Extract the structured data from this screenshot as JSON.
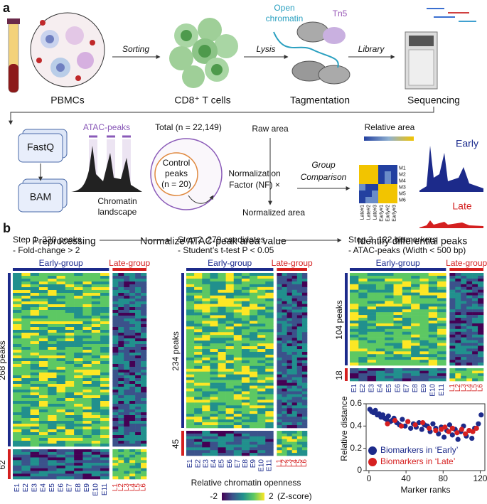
{
  "panel_a": {
    "label": "a",
    "top_steps": [
      "PBMCs",
      "CD8⁺ T cells",
      "Tagmentation",
      "Sequencing"
    ],
    "top_arrows": [
      "Sorting",
      "Lysis",
      "Library"
    ],
    "open_chromatin": [
      "Open",
      "chromatin"
    ],
    "tn5": "Tn5",
    "fastq": "FastQ",
    "bam": "BAM",
    "preprocessing": "Preprocessing",
    "atac_peaks": "ATAC-peaks",
    "chromatin_landscape": [
      "Chromatin",
      "landscape"
    ],
    "total": "Total (n = 22,149)",
    "control_peaks": [
      "Control",
      "peaks",
      "(n = 20)"
    ],
    "raw_area": "Raw area",
    "nf": [
      "Normalization",
      "Factor (NF) ×"
    ],
    "normalized_area": "Normalized area",
    "normalize_title": "Normalize ATAC-peak area value",
    "group_comparison": [
      "Group",
      "Comparison"
    ],
    "relative_area": "Relative area",
    "heat_rows": [
      "M1",
      "M2",
      "M4",
      "M3",
      "M5",
      "M6"
    ],
    "heat_cols": [
      "Late#1",
      "Late#2",
      "Late#3",
      "Early#1",
      "Early#2",
      "Early#3"
    ],
    "early": "Early",
    "late": "Late",
    "identify_title": "Identify differential peaks"
  },
  "panel_b": {
    "label": "b",
    "steps": [
      [
        "Step 1. 330 peaks",
        "- Fold-change > 2"
      ],
      [
        "Step 2. 279 candidates",
        "- Student’s t-test P < 0.05"
      ],
      [
        "Step 3. 122 biomarkers",
        "- ATAC-peaks (Width < 500 bp)"
      ]
    ],
    "early_group": "Early-group",
    "late_group": "Late-group",
    "row_groups": [
      [
        "268 peaks",
        "62"
      ],
      [
        "234 peaks",
        "45"
      ],
      [
        "104 peaks",
        "18"
      ]
    ],
    "early_samples": [
      "E1",
      "E2",
      "E3",
      "E4",
      "E5",
      "E6",
      "E7",
      "E8",
      "E9",
      "E10",
      "E11"
    ],
    "late_samples": [
      "L1",
      "L2",
      "L3",
      "L4",
      "L5",
      "L6"
    ],
    "colorbar": {
      "title": "Relative chromatin openness",
      "min_label": "-2",
      "max_label": "2",
      "unit": "(Z-score)"
    }
  },
  "chart_data": {
    "type": "scatter",
    "ylabel": "Relative distance",
    "xlabel": "Marker ranks",
    "xlim": [
      -3,
      125
    ],
    "ylim": [
      0,
      0.6
    ],
    "xticks": [
      0,
      40,
      80,
      120
    ],
    "yticks": [
      0,
      0.2,
      0.4,
      0.6
    ],
    "series": [
      {
        "name": "Biomarkers in ‘Early’",
        "color": "#1c2a8a",
        "x": [
          1,
          3,
          5,
          7,
          9,
          11,
          13,
          15,
          17,
          19,
          21,
          23,
          25,
          27,
          30,
          33,
          36,
          39,
          42,
          45,
          48,
          51,
          54,
          57,
          60,
          63,
          66,
          69,
          72,
          75,
          78,
          81,
          84,
          87,
          90,
          93,
          96,
          99,
          102,
          105,
          108,
          111,
          114,
          118,
          121
        ],
        "values": [
          0.55,
          0.53,
          0.52,
          0.54,
          0.5,
          0.51,
          0.48,
          0.5,
          0.47,
          0.46,
          0.49,
          0.44,
          0.45,
          0.47,
          0.43,
          0.41,
          0.46,
          0.4,
          0.44,
          0.38,
          0.42,
          0.39,
          0.43,
          0.37,
          0.41,
          0.4,
          0.35,
          0.42,
          0.38,
          0.33,
          0.39,
          0.3,
          0.36,
          0.41,
          0.32,
          0.37,
          0.28,
          0.35,
          0.4,
          0.31,
          0.36,
          0.29,
          0.38,
          0.42,
          0.5
        ]
      },
      {
        "name": "Biomarkers in ‘Late’",
        "color": "#d62020",
        "x": [
          20,
          28,
          35,
          42,
          50,
          58,
          65,
          72,
          78,
          82,
          86,
          90,
          95,
          100,
          104,
          108,
          112,
          116
        ],
        "values": [
          0.42,
          0.45,
          0.4,
          0.44,
          0.41,
          0.43,
          0.38,
          0.36,
          0.37,
          0.39,
          0.35,
          0.38,
          0.34,
          0.37,
          0.33,
          0.36,
          0.35,
          0.38
        ]
      }
    ]
  }
}
